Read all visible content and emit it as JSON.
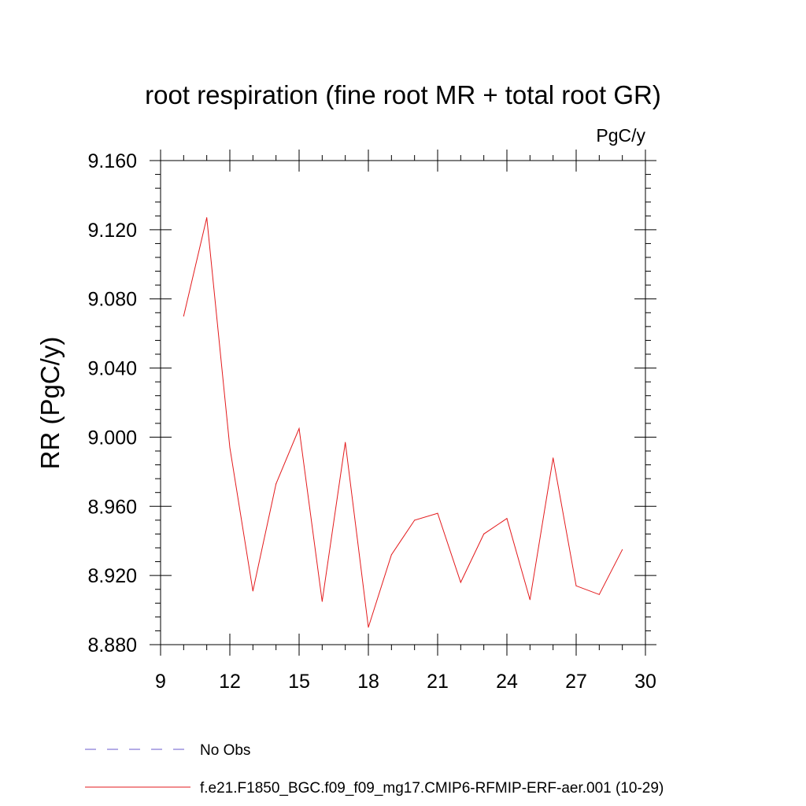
{
  "chart_data": {
    "type": "line",
    "title": "root respiration (fine root MR + total root GR)",
    "units": "PgC/y",
    "ylabel": "RR  (PgC/y)",
    "xlabel": "",
    "xlim": [
      9,
      30
    ],
    "ylim": [
      8.88,
      9.16
    ],
    "x_major_ticks": [
      9,
      12,
      15,
      18,
      21,
      24,
      27,
      30
    ],
    "y_major_ticks": [
      8.88,
      8.92,
      8.96,
      9.0,
      9.04,
      9.08,
      9.12,
      9.16
    ],
    "y_tick_labels": [
      "8.880",
      "8.920",
      "8.960",
      "9.000",
      "9.040",
      "9.080",
      "9.120",
      "9.160"
    ],
    "x_minor_step": 1,
    "y_minor_step": 0.008,
    "grid": false,
    "series": [
      {
        "name": "f.e21.F1850_BGC.f09_f09_mg17.CMIP6-RFMIP-ERF-aer.001 (10-29)",
        "color": "#e31a1c",
        "dash": "solid",
        "x": [
          10,
          11,
          12,
          13,
          14,
          15,
          16,
          17,
          18,
          19,
          20,
          21,
          22,
          23,
          24,
          25,
          26,
          27,
          28,
          29
        ],
        "y": [
          9.07,
          9.127,
          8.994,
          8.911,
          8.973,
          9.005,
          8.905,
          8.997,
          8.89,
          8.932,
          8.952,
          8.956,
          8.916,
          8.944,
          8.953,
          8.906,
          8.988,
          8.914,
          8.909,
          8.935
        ]
      }
    ],
    "legend": {
      "placement": "bottom-left",
      "entries": [
        {
          "label": "No Obs",
          "color": "#6a5acd",
          "dash": "dashed"
        },
        {
          "label": "f.e21.F1850_BGC.f09_f09_mg17.CMIP6-RFMIP-ERF-aer.001 (10-29)",
          "color": "#e31a1c",
          "dash": "solid"
        }
      ]
    }
  }
}
